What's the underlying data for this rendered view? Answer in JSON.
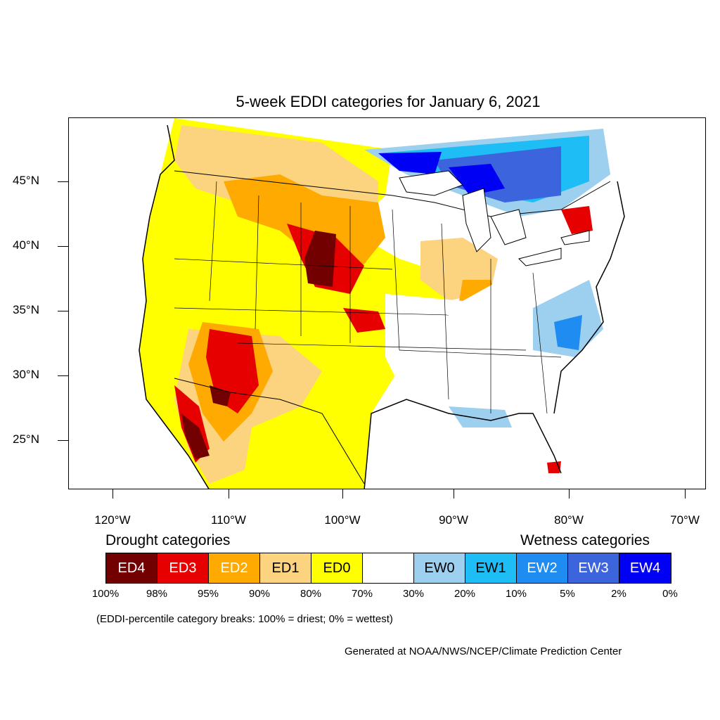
{
  "title": "5-week EDDI categories for January 6, 2021",
  "map": {
    "projection": "lambert-conformal",
    "region": "Contiguous United States",
    "y_tick_labels": [
      "45°N",
      "40°N",
      "35°N",
      "30°N",
      "25°N"
    ],
    "x_tick_labels": [
      "120°W",
      "110°W",
      "100°W",
      "90°W",
      "80°W",
      "70°W"
    ]
  },
  "legend": {
    "drought_heading": "Drought categories",
    "wetness_heading": "Wetness categories",
    "categories": [
      {
        "label": "ED4",
        "color": "#730000",
        "text_color": "#ffffff"
      },
      {
        "label": "ED3",
        "color": "#e60000",
        "text_color": "#ffffff"
      },
      {
        "label": "ED2",
        "color": "#ffaa00",
        "text_color": "#ffffff"
      },
      {
        "label": "ED1",
        "color": "#fcd37f",
        "text_color": "#000000"
      },
      {
        "label": "ED0",
        "color": "#ffff00",
        "text_color": "#000000"
      },
      {
        "label": "",
        "color": "#ffffff",
        "text_color": "#000000"
      },
      {
        "label": "EW0",
        "color": "#9dcfef",
        "text_color": "#000000"
      },
      {
        "label": "EW1",
        "color": "#1fbdf5",
        "text_color": "#000000"
      },
      {
        "label": "EW2",
        "color": "#1e8cf0",
        "text_color": "#ffffff"
      },
      {
        "label": "EW3",
        "color": "#3c64dc",
        "text_color": "#ffffff"
      },
      {
        "label": "EW4",
        "color": "#0000f5",
        "text_color": "#ffffff"
      }
    ],
    "percentiles": [
      "100%",
      "98%",
      "95%",
      "90%",
      "80%",
      "70%",
      "30%",
      "20%",
      "10%",
      "5%",
      "2%",
      "0%"
    ],
    "note": "(EDDI-percentile category breaks: 100% = driest; 0% = wettest)"
  },
  "credit": "Generated at NOAA/NWS/NCEP/Climate Prediction Center"
}
